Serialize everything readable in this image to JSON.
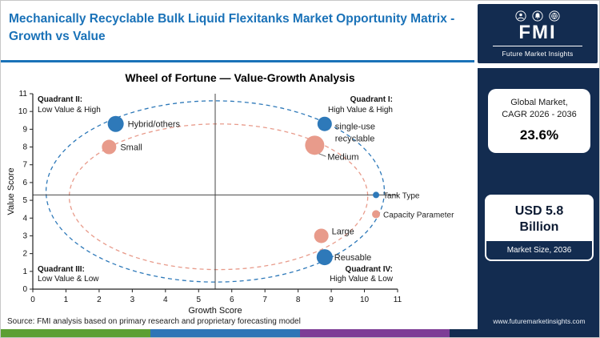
{
  "colors": {
    "title_blue": "#1a72b8",
    "navy": "#132c50",
    "tank_type_blue": "#2e79b9",
    "capacity_pink": "#e89b8b",
    "stripe": [
      "#5c9f33",
      "#2e75b6",
      "#7d3d96",
      "#132c50"
    ]
  },
  "header": {
    "title": "Mechanically Recyclable Bulk Liquid Flexitanks Market Opportunity Matrix - Growth vs Value",
    "logo": {
      "abbr": "FMI",
      "name": "Future Market Insights"
    }
  },
  "sidebar": {
    "cagr_card": {
      "line1": "Global Market,",
      "line2": "CAGR 2026 - 2036",
      "value": "23.6%"
    },
    "size_card": {
      "value": "USD 5.8 Billion",
      "label": "Market Size, 2036"
    },
    "website": "www.futuremarketinsights.com"
  },
  "footer": {
    "source": "Source: FMI analysis based on primary research and proprietary forecasting model"
  },
  "chart_data": {
    "type": "scatter",
    "title": "Wheel of Fortune — Value-Growth Analysis",
    "xlabel": "Growth Score",
    "ylabel": "Value Score",
    "xlim": [
      0,
      11
    ],
    "ylim": [
      0,
      11
    ],
    "ticks": [
      0,
      1,
      2,
      3,
      4,
      5,
      6,
      7,
      8,
      9,
      10,
      11
    ],
    "grid": false,
    "center_cross": {
      "x": 5.5,
      "y": 5.3
    },
    "quadrant_labels": [
      {
        "title": "Quadrant II:",
        "subtitle": "Low Value & High",
        "position": "top-left"
      },
      {
        "title": "Quadrant I:",
        "subtitle": "High Value & High",
        "position": "top-right"
      },
      {
        "title": "Quadrant III:",
        "subtitle": "Low Value & Low",
        "position": "bottom-left"
      },
      {
        "title": "Quadrant IV:",
        "subtitle": "High Value & Low",
        "position": "bottom-right"
      }
    ],
    "ellipses": [
      {
        "cx": 5.5,
        "cy": 5.5,
        "rx": 5.1,
        "ry": 5.1,
        "color": "#2e79b9"
      },
      {
        "cx": 5.6,
        "cy": 5.2,
        "rx": 4.5,
        "ry": 4.1,
        "color": "#e89b8b"
      }
    ],
    "series": [
      {
        "name": "Tank Type",
        "color": "#2e79b9",
        "points": [
          {
            "label": "Hybrid/others",
            "x": 2.5,
            "y": 9.3,
            "r": 10,
            "label_dx": 15,
            "label_dy": 4
          },
          {
            "label": "single-use recyclable",
            "x": 8.8,
            "y": 9.3,
            "r": 9,
            "label_dx": 13,
            "label_dy": 7,
            "label_lines": [
              "single-use",
              "recyclable"
            ]
          },
          {
            "label": "Reusable",
            "x": 8.8,
            "y": 1.8,
            "r": 10,
            "label_dx": 12,
            "label_dy": 4
          }
        ]
      },
      {
        "name": "Capacity Parameter",
        "color": "#e89b8b",
        "points": [
          {
            "label": "Small",
            "x": 2.3,
            "y": 8.0,
            "r": 9,
            "label_dx": 14,
            "label_dy": 4
          },
          {
            "label": "Medium",
            "x": 8.5,
            "y": 8.1,
            "r": 12,
            "label_dx": 16,
            "label_dy": 18,
            "leader": true
          },
          {
            "label": "Large",
            "x": 8.7,
            "y": 3.0,
            "r": 9,
            "label_dx": 13,
            "label_dy": -2
          }
        ]
      }
    ],
    "legend": {
      "x": 10.35,
      "y": 5.3,
      "gap": 24,
      "marker_r": [
        4,
        5
      ],
      "position": "right-middle"
    }
  }
}
